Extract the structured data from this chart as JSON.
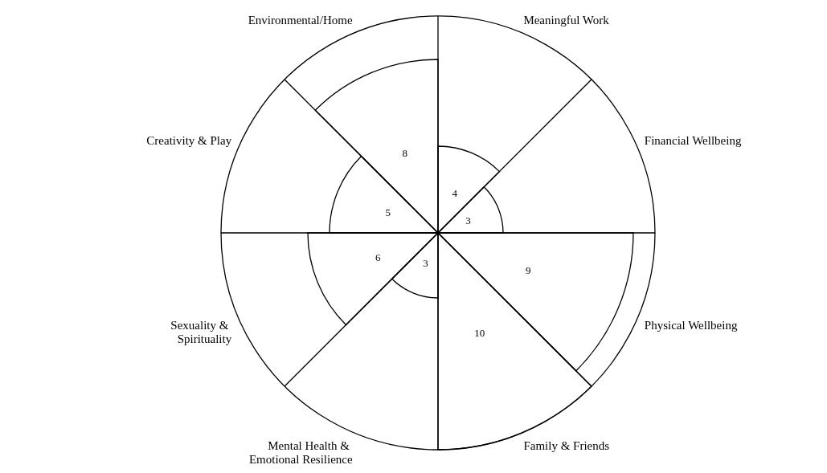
{
  "chart_data": {
    "type": "other",
    "categories": [
      "Meaningful Work",
      "Financial Wellbeing",
      "Physical Wellbeing",
      "Family & Friends",
      "Mental Health & Emotional Resilience",
      "Sexuality & Spirituality",
      "Creativity & Play",
      "Environmental/Home"
    ],
    "values": [
      4,
      3,
      9,
      10,
      3,
      6,
      5,
      8
    ],
    "color": "#000000",
    "data_labels": true
  }
}
